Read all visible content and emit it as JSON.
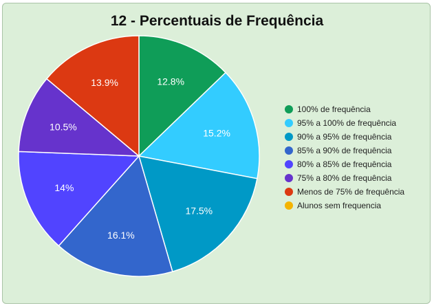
{
  "chart_data": {
    "type": "pie",
    "title": "12 - Percentuais de Frequência",
    "legend_position": "right",
    "slices": [
      {
        "label": "100% de frequência",
        "value": 12.8,
        "display": "12.8%",
        "color": "#0f9d58"
      },
      {
        "label": "95% a 100% de frequência",
        "value": 15.2,
        "display": "15.2%",
        "color": "#33ccff"
      },
      {
        "label": "90% a 95% de frequência",
        "value": 17.5,
        "display": "17.5%",
        "color": "#0099c6"
      },
      {
        "label": "85% a 90% de frequência",
        "value": 16.1,
        "display": "16.1%",
        "color": "#3366cc"
      },
      {
        "label": "80% a 85% de frequência",
        "value": 14.0,
        "display": "14%",
        "color": "#5144ff"
      },
      {
        "label": "75% a 80% de frequência",
        "value": 10.5,
        "display": "10.5%",
        "color": "#6633cc"
      },
      {
        "label": "Menos de 75% de frequência",
        "value": 13.9,
        "display": "13.9%",
        "color": "#dc3912"
      },
      {
        "label": "Alunos sem frequencia",
        "value": 0,
        "display": "",
        "color": "#f4b400"
      }
    ]
  }
}
